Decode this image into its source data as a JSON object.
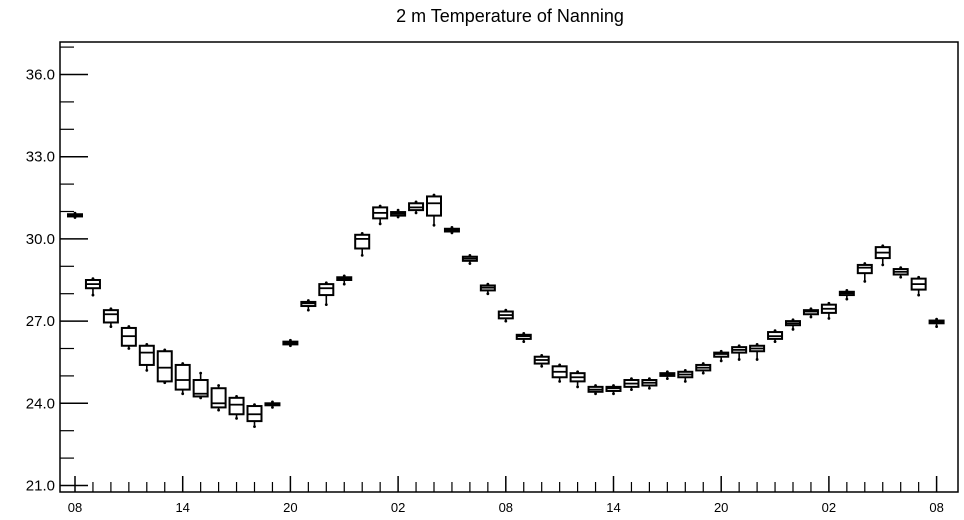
{
  "chart_data": {
    "type": "box",
    "title": "2 m Temperature of Nanning",
    "xlabel": "",
    "ylabel": "",
    "ylim": [
      21.0,
      37.2
    ],
    "yticks": [
      "21.0",
      "24.0",
      "27.0",
      "30.0",
      "33.0",
      "36.0"
    ],
    "ytick_values": [
      21,
      24,
      27,
      30,
      33,
      36
    ],
    "xtick_labels": [
      "08",
      "14",
      "20",
      "02",
      "08",
      "14",
      "20",
      "02",
      "08"
    ],
    "xtick_hours": [
      0,
      6,
      12,
      18,
      24,
      30,
      36,
      42,
      48
    ],
    "grid": false,
    "series": [
      {
        "boxes": [
          {
            "h": 0,
            "min": 30.78,
            "q1": 30.82,
            "med": 30.86,
            "q3": 30.9,
            "max": 30.94
          },
          {
            "h": 1,
            "min": 27.95,
            "q1": 28.2,
            "med": 28.35,
            "q3": 28.5,
            "max": 28.55
          },
          {
            "h": 2,
            "min": 26.8,
            "q1": 26.95,
            "med": 27.25,
            "q3": 27.4,
            "max": 27.45
          },
          {
            "h": 3,
            "min": 26.0,
            "q1": 26.1,
            "med": 26.45,
            "q3": 26.75,
            "max": 26.8
          },
          {
            "h": 4,
            "min": 25.2,
            "q1": 25.4,
            "med": 25.85,
            "q3": 26.1,
            "max": 26.15
          },
          {
            "h": 5,
            "min": 24.75,
            "q1": 24.8,
            "med": 25.3,
            "q3": 25.9,
            "max": 25.95
          },
          {
            "h": 6,
            "min": 24.35,
            "q1": 24.5,
            "med": 24.85,
            "q3": 25.4,
            "max": 25.45
          },
          {
            "h": 7,
            "min": 24.2,
            "q1": 24.25,
            "med": 24.35,
            "q3": 24.85,
            "max": 25.1
          },
          {
            "h": 8,
            "min": 23.75,
            "q1": 23.85,
            "med": 24.0,
            "q3": 24.55,
            "max": 24.65
          },
          {
            "h": 9,
            "min": 23.45,
            "q1": 23.6,
            "med": 23.95,
            "q3": 24.2,
            "max": 24.25
          },
          {
            "h": 10,
            "min": 23.15,
            "q1": 23.35,
            "med": 23.6,
            "q3": 23.9,
            "max": 23.95
          },
          {
            "h": 11,
            "min": 23.85,
            "q1": 23.93,
            "med": 23.97,
            "q3": 24.0,
            "max": 24.05
          },
          {
            "h": 12,
            "min": 26.1,
            "q1": 26.15,
            "med": 26.2,
            "q3": 26.25,
            "max": 26.3
          },
          {
            "h": 13,
            "min": 27.4,
            "q1": 27.55,
            "med": 27.65,
            "q3": 27.7,
            "max": 27.75
          },
          {
            "h": 14,
            "min": 27.6,
            "q1": 27.95,
            "med": 28.2,
            "q3": 28.35,
            "max": 28.4
          },
          {
            "h": 15,
            "min": 28.35,
            "q1": 28.5,
            "med": 28.55,
            "q3": 28.6,
            "max": 28.65
          },
          {
            "h": 16,
            "min": 29.4,
            "q1": 29.65,
            "med": 30.0,
            "q3": 30.15,
            "max": 30.2
          },
          {
            "h": 17,
            "min": 30.55,
            "q1": 30.75,
            "med": 30.95,
            "q3": 31.15,
            "max": 31.2
          },
          {
            "h": 18,
            "min": 30.8,
            "q1": 30.85,
            "med": 30.92,
            "q3": 30.98,
            "max": 31.05
          },
          {
            "h": 19,
            "min": 30.95,
            "q1": 31.05,
            "med": 31.15,
            "q3": 31.3,
            "max": 31.35
          },
          {
            "h": 20,
            "min": 30.5,
            "q1": 30.85,
            "med": 31.3,
            "q3": 31.55,
            "max": 31.6
          },
          {
            "h": 21,
            "min": 30.22,
            "q1": 30.27,
            "med": 30.32,
            "q3": 30.37,
            "max": 30.42
          },
          {
            "h": 22,
            "min": 29.1,
            "q1": 29.2,
            "med": 29.28,
            "q3": 29.35,
            "max": 29.4
          },
          {
            "h": 23,
            "min": 28.0,
            "q1": 28.12,
            "med": 28.22,
            "q3": 28.3,
            "max": 28.35
          },
          {
            "h": 24,
            "min": 27.0,
            "q1": 27.1,
            "med": 27.22,
            "q3": 27.35,
            "max": 27.4
          },
          {
            "h": 25,
            "min": 26.25,
            "q1": 26.35,
            "med": 26.45,
            "q3": 26.5,
            "max": 26.55
          },
          {
            "h": 26,
            "min": 25.35,
            "q1": 25.45,
            "med": 25.58,
            "q3": 25.7,
            "max": 25.75
          },
          {
            "h": 27,
            "min": 24.8,
            "q1": 24.95,
            "med": 25.15,
            "q3": 25.35,
            "max": 25.4
          },
          {
            "h": 28,
            "min": 24.6,
            "q1": 24.8,
            "med": 24.95,
            "q3": 25.1,
            "max": 25.15
          },
          {
            "h": 29,
            "min": 24.35,
            "q1": 24.42,
            "med": 24.5,
            "q3": 24.6,
            "max": 24.65
          },
          {
            "h": 30,
            "min": 24.35,
            "q1": 24.45,
            "med": 24.55,
            "q3": 24.6,
            "max": 24.65
          },
          {
            "h": 31,
            "min": 24.5,
            "q1": 24.6,
            "med": 24.72,
            "q3": 24.85,
            "max": 24.9
          },
          {
            "h": 32,
            "min": 24.55,
            "q1": 24.65,
            "med": 24.75,
            "q3": 24.85,
            "max": 24.9
          },
          {
            "h": 33,
            "min": 24.9,
            "q1": 25.0,
            "med": 25.05,
            "q3": 25.1,
            "max": 25.15
          },
          {
            "h": 34,
            "min": 24.8,
            "q1": 24.95,
            "med": 25.05,
            "q3": 25.15,
            "max": 25.2
          },
          {
            "h": 35,
            "min": 25.1,
            "q1": 25.2,
            "med": 25.3,
            "q3": 25.4,
            "max": 25.45
          },
          {
            "h": 36,
            "min": 25.55,
            "q1": 25.7,
            "med": 25.8,
            "q3": 25.85,
            "max": 25.9
          },
          {
            "h": 37,
            "min": 25.6,
            "q1": 25.85,
            "med": 25.95,
            "q3": 26.05,
            "max": 26.1
          },
          {
            "h": 38,
            "min": 25.6,
            "q1": 25.9,
            "med": 26.0,
            "q3": 26.1,
            "max": 26.15
          },
          {
            "h": 39,
            "min": 26.25,
            "q1": 26.35,
            "med": 26.45,
            "q3": 26.6,
            "max": 26.65
          },
          {
            "h": 40,
            "min": 26.7,
            "q1": 26.85,
            "med": 26.92,
            "q3": 27.0,
            "max": 27.05
          },
          {
            "h": 41,
            "min": 27.15,
            "q1": 27.25,
            "med": 27.35,
            "q3": 27.4,
            "max": 27.45
          },
          {
            "h": 42,
            "min": 27.1,
            "q1": 27.3,
            "med": 27.45,
            "q3": 27.6,
            "max": 27.65
          },
          {
            "h": 43,
            "min": 27.8,
            "q1": 27.95,
            "med": 28.02,
            "q3": 28.07,
            "max": 28.12
          },
          {
            "h": 44,
            "min": 28.45,
            "q1": 28.75,
            "med": 28.95,
            "q3": 29.05,
            "max": 29.1
          },
          {
            "h": 45,
            "min": 29.05,
            "q1": 29.3,
            "med": 29.5,
            "q3": 29.7,
            "max": 29.75
          },
          {
            "h": 46,
            "min": 28.6,
            "q1": 28.7,
            "med": 28.8,
            "q3": 28.9,
            "max": 28.95
          },
          {
            "h": 47,
            "min": 27.95,
            "q1": 28.15,
            "med": 28.35,
            "q3": 28.55,
            "max": 28.6
          },
          {
            "h": 48,
            "min": 26.8,
            "q1": 26.92,
            "med": 26.98,
            "q3": 27.02,
            "max": 27.07
          }
        ]
      }
    ]
  }
}
